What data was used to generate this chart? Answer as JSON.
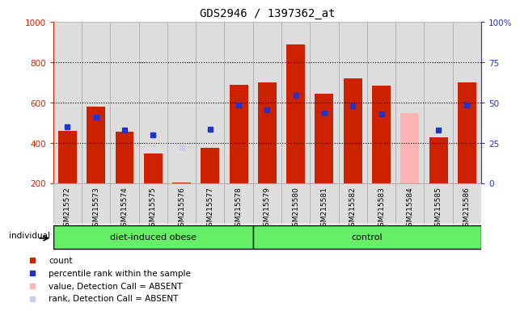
{
  "title": "GDS2946 / 1397362_at",
  "samples": [
    "GSM215572",
    "GSM215573",
    "GSM215574",
    "GSM215575",
    "GSM215576",
    "GSM215577",
    "GSM215578",
    "GSM215579",
    "GSM215580",
    "GSM215581",
    "GSM215582",
    "GSM215583",
    "GSM215584",
    "GSM215585",
    "GSM215586"
  ],
  "count_values": [
    460,
    580,
    455,
    350,
    205,
    375,
    690,
    700,
    890,
    645,
    720,
    685,
    210,
    430,
    700
  ],
  "rank_values": [
    480,
    530,
    465,
    440,
    null,
    470,
    590,
    565,
    635,
    550,
    585,
    545,
    null,
    465,
    590
  ],
  "absent_count": [
    null,
    null,
    null,
    null,
    null,
    null,
    null,
    null,
    null,
    null,
    null,
    null,
    550,
    null,
    null
  ],
  "absent_rank": [
    null,
    null,
    null,
    null,
    375,
    null,
    null,
    null,
    null,
    null,
    null,
    null,
    null,
    null,
    null
  ],
  "absent_bar_gsm576": true,
  "groups": [
    "diet-induced obese",
    "diet-induced obese",
    "diet-induced obese",
    "diet-induced obese",
    "diet-induced obese",
    "diet-induced obese",
    "diet-induced obese",
    "control",
    "control",
    "control",
    "control",
    "control",
    "control",
    "control",
    "control"
  ],
  "ylim_left": [
    200,
    1000
  ],
  "ylim_right": [
    0,
    100
  ],
  "yticks_left": [
    200,
    400,
    600,
    800,
    1000
  ],
  "yticks_right": [
    0,
    25,
    50,
    75,
    100
  ],
  "bar_color_red": "#cc2200",
  "bar_color_blue": "#2233cc",
  "bar_color_pink": "#ffb3b3",
  "bar_color_lightblue": "#ccccee",
  "bg_color": "#dddddd",
  "cell_bg": "#e8e8e8",
  "plot_bg": "#ffffff",
  "grid_color": "#000000",
  "group_green": "#66ee66"
}
